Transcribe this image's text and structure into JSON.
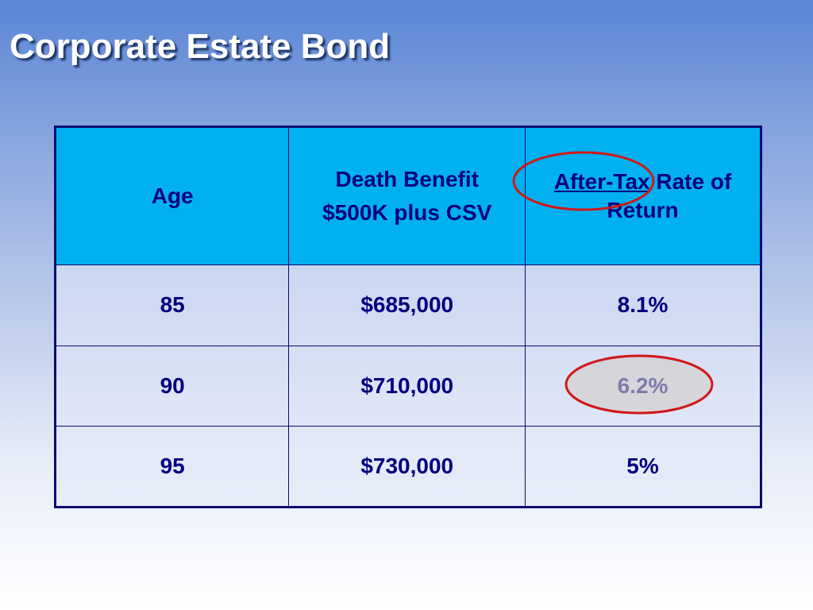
{
  "title": "Corporate Estate Bond",
  "table": {
    "header": [
      [
        "Age"
      ],
      [
        "Death Benefit",
        "$500K plus CSV"
      ],
      [
        "After-Tax",
        "Rate of Return"
      ]
    ],
    "rows": [
      [
        "85",
        "$685,000",
        "8.1%"
      ],
      [
        "90",
        "$710,000",
        "6.2%"
      ],
      [
        "95",
        "$730,000",
        "5%"
      ]
    ]
  }
}
